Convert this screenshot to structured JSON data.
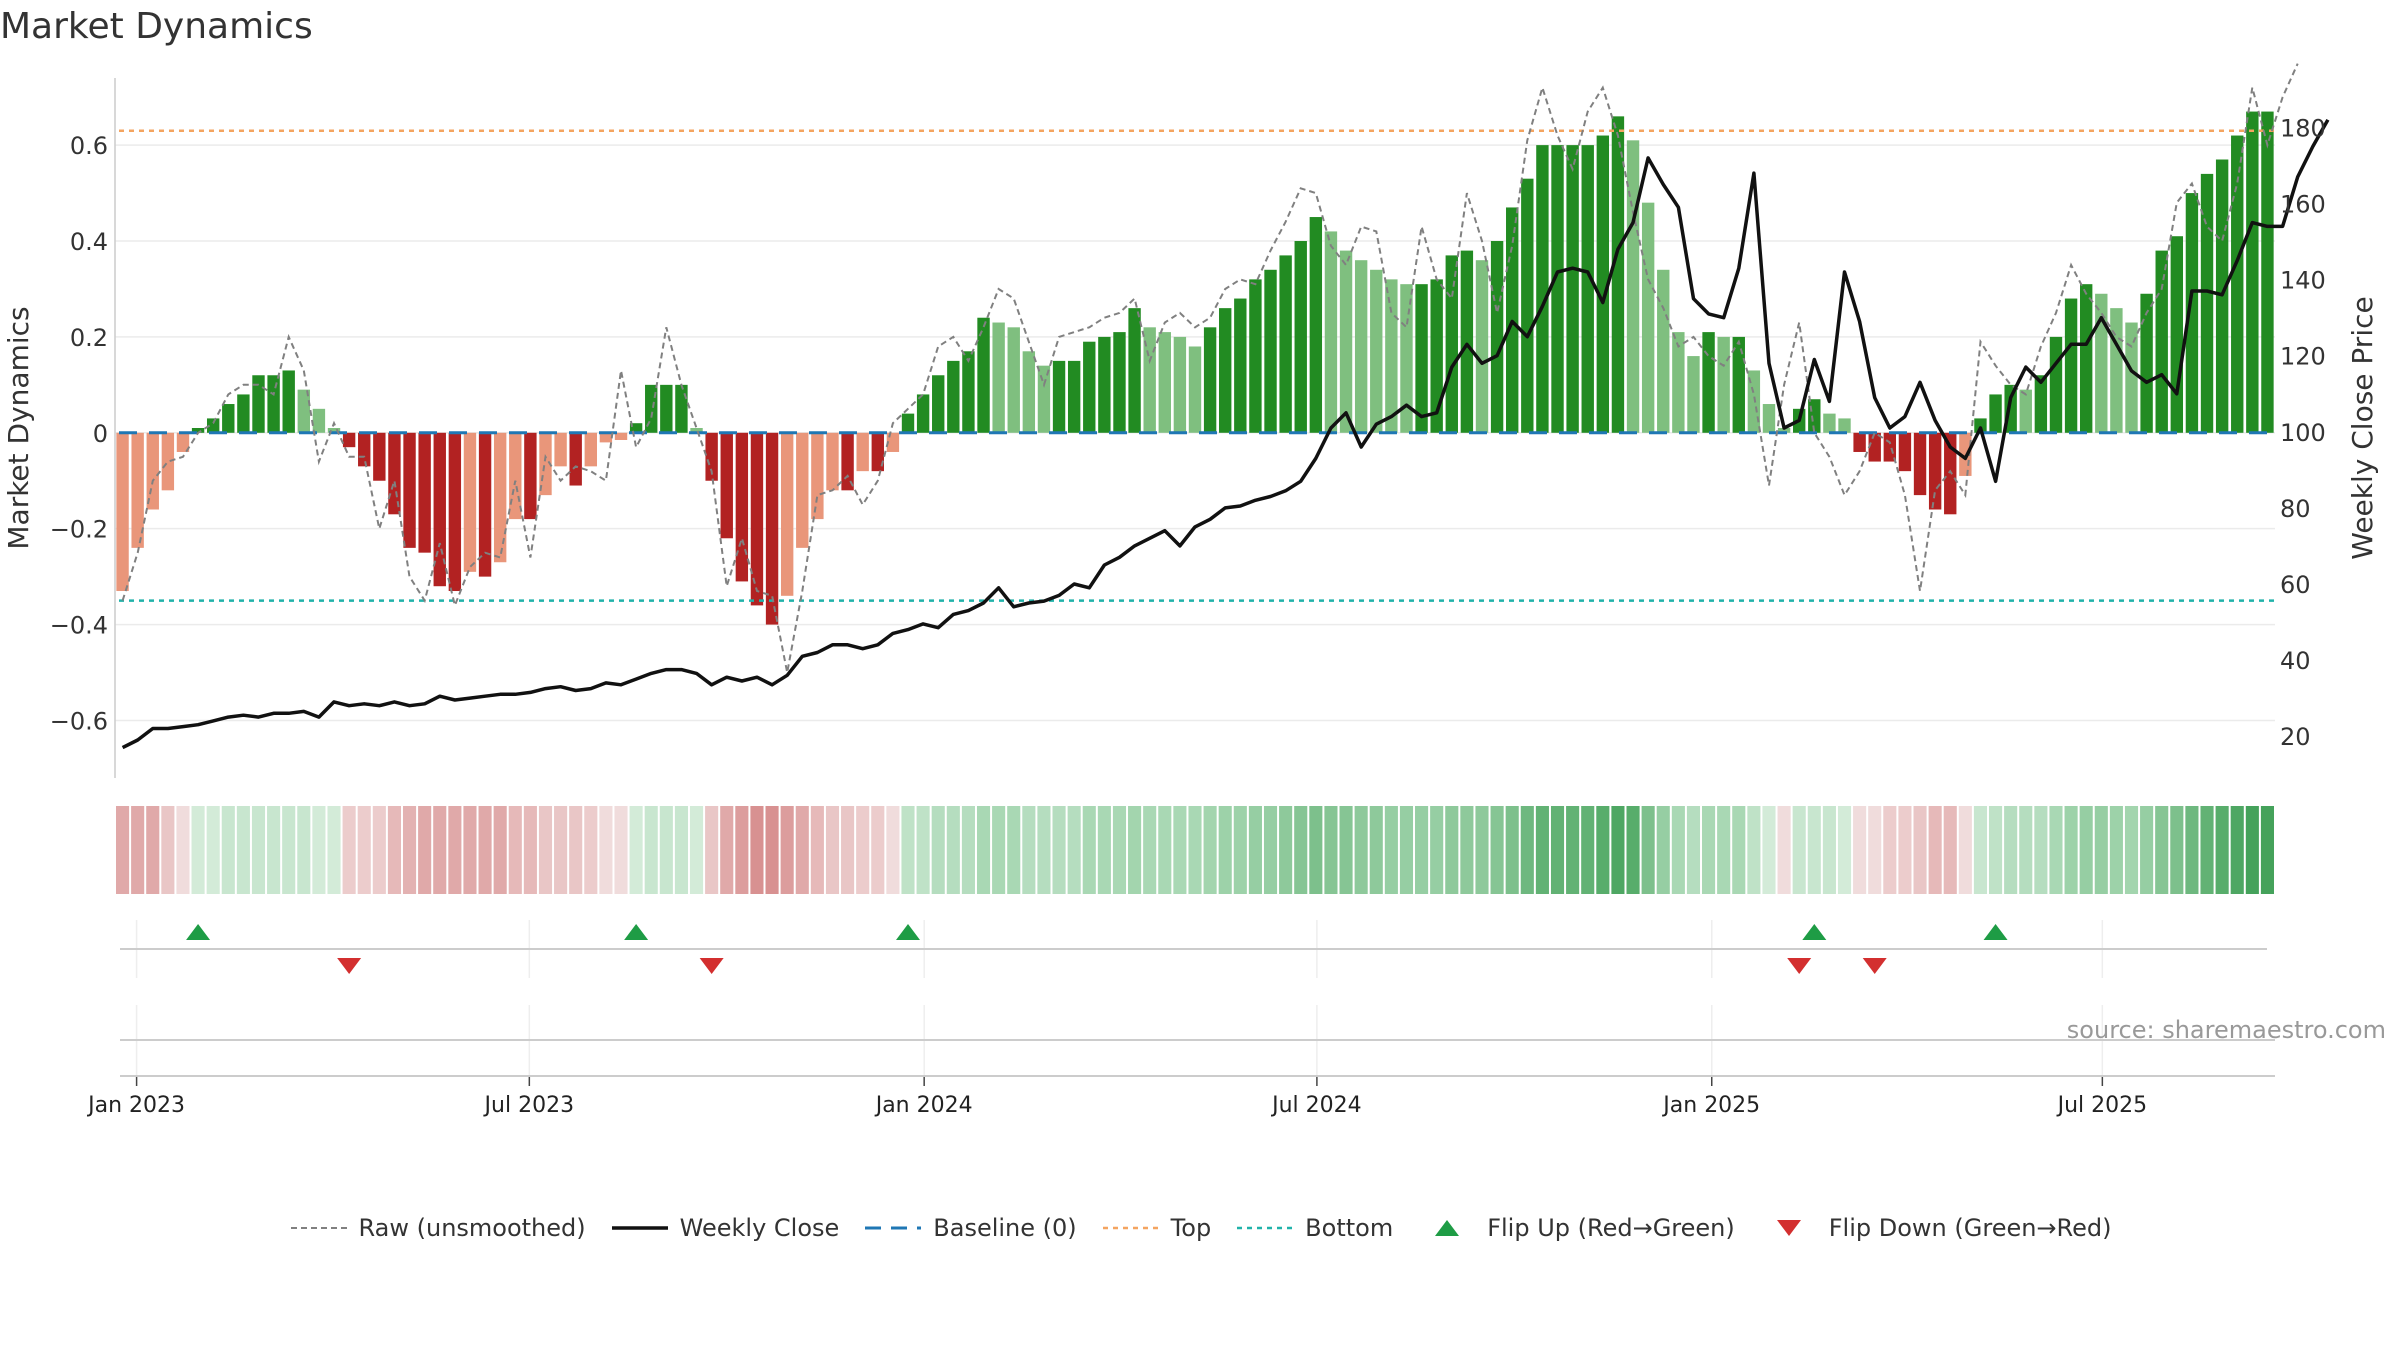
{
  "title": "Market Dynamics",
  "source": "source: sharemaestro.com",
  "chart_data": {
    "type": "bar",
    "left_axis": {
      "label": "Market Dynamics",
      "ylim": [
        -0.72,
        0.74
      ],
      "ticks": [
        "−0.6",
        "−0.4",
        "−0.2",
        "0",
        "0.2",
        "0.4",
        "0.6"
      ],
      "tick_values": [
        -0.6,
        -0.4,
        -0.2,
        0,
        0.2,
        0.4,
        0.6
      ]
    },
    "right_axis": {
      "label": "Weekly Close Price",
      "ylim": [
        9,
        193
      ],
      "ticks": [
        "20",
        "40",
        "60",
        "80",
        "100",
        "120",
        "140",
        "160",
        "180"
      ],
      "tick_values": [
        20,
        40,
        60,
        80,
        100,
        120,
        140,
        160,
        180
      ]
    },
    "x_ticks": [
      "Jan 2023",
      "Jul 2023",
      "Jan 2024",
      "Jul 2024",
      "Jan 2025",
      "Jul 2025"
    ],
    "x_tick_weeks": [
      1.43,
      27.43,
      53.57,
      79.57,
      105.71,
      131.57
    ],
    "top_line": 0.63,
    "bottom_line": -0.35,
    "baseline": 0,
    "bars": [
      -0.33,
      -0.24,
      -0.16,
      -0.12,
      -0.04,
      0.01,
      0.03,
      0.06,
      0.08,
      0.12,
      0.12,
      0.13,
      0.09,
      0.05,
      0.01,
      -0.03,
      -0.07,
      -0.1,
      -0.17,
      -0.24,
      -0.25,
      -0.32,
      -0.33,
      -0.29,
      -0.3,
      -0.27,
      -0.18,
      -0.18,
      -0.13,
      -0.07,
      -0.11,
      -0.07,
      -0.02,
      -0.015,
      0.02,
      0.1,
      0.1,
      0.1,
      0.01,
      -0.1,
      -0.22,
      -0.31,
      -0.36,
      -0.4,
      -0.34,
      -0.24,
      -0.18,
      -0.12,
      -0.12,
      -0.08,
      -0.08,
      -0.04,
      0.04,
      0.08,
      0.12,
      0.15,
      0.17,
      0.24,
      0.23,
      0.22,
      0.17,
      0.14,
      0.15,
      0.15,
      0.19,
      0.2,
      0.21,
      0.26,
      0.22,
      0.21,
      0.2,
      0.18,
      0.22,
      0.26,
      0.28,
      0.32,
      0.34,
      0.37,
      0.4,
      0.45,
      0.42,
      0.38,
      0.36,
      0.34,
      0.32,
      0.31,
      0.31,
      0.32,
      0.37,
      0.38,
      0.36,
      0.4,
      0.47,
      0.53,
      0.6,
      0.6,
      0.6,
      0.6,
      0.62,
      0.66,
      0.61,
      0.48,
      0.34,
      0.21,
      0.16,
      0.21,
      0.2,
      0.2,
      0.13,
      0.06,
      0.01,
      0.05,
      0.07,
      0.04,
      0.03,
      -0.04,
      -0.06,
      -0.06,
      -0.08,
      -0.13,
      -0.16,
      -0.17,
      -0.09,
      0.03,
      0.08,
      0.1,
      0.09,
      0.12,
      0.2,
      0.28,
      0.31,
      0.29,
      0.26,
      0.23,
      0.29,
      0.38,
      0.41,
      0.5,
      0.54,
      0.57,
      0.62,
      0.67,
      0.67
    ],
    "raw_series": [
      -0.35,
      -0.25,
      -0.1,
      -0.06,
      -0.05,
      0,
      0.02,
      0.08,
      0.1,
      0.1,
      0.08,
      0.2,
      0.13,
      -0.06,
      0.02,
      -0.05,
      -0.05,
      -0.2,
      -0.1,
      -0.3,
      -0.35,
      -0.23,
      -0.36,
      -0.28,
      -0.25,
      -0.26,
      -0.1,
      -0.26,
      -0.05,
      -0.1,
      -0.07,
      -0.08,
      -0.1,
      0.13,
      -0.03,
      0.03,
      0.22,
      0.1,
      0.01,
      -0.08,
      -0.32,
      -0.22,
      -0.33,
      -0.34,
      -0.5,
      -0.33,
      -0.13,
      -0.12,
      -0.09,
      -0.15,
      -0.1,
      0.02,
      0.05,
      0.08,
      0.18,
      0.2,
      0.15,
      0.22,
      0.3,
      0.28,
      0.19,
      0.1,
      0.2,
      0.21,
      0.22,
      0.24,
      0.25,
      0.28,
      0.15,
      0.23,
      0.25,
      0.22,
      0.24,
      0.3,
      0.32,
      0.31,
      0.38,
      0.44,
      0.51,
      0.5,
      0.39,
      0.35,
      0.43,
      0.42,
      0.25,
      0.22,
      0.43,
      0.32,
      0.28,
      0.5,
      0.4,
      0.25,
      0.39,
      0.61,
      0.72,
      0.62,
      0.55,
      0.67,
      0.72,
      0.62,
      0.46,
      0.32,
      0.26,
      0.18,
      0.2,
      0.16,
      0.14,
      0.19,
      0.08,
      -0.11,
      0.1,
      0.23,
      0.0,
      -0.05,
      -0.13,
      -0.08,
      0.0,
      -0.02,
      -0.13,
      -0.33,
      -0.12,
      -0.08,
      -0.13,
      0.19,
      0.14,
      0.1,
      0.08,
      0.18,
      0.25,
      0.35,
      0.29,
      0.25,
      0.2,
      0.18,
      0.25,
      0.3,
      0.48,
      0.52,
      0.43,
      0.4,
      0.52,
      0.72,
      0.6,
      0.7,
      0.77
    ],
    "weekly_close": [
      17,
      19,
      22,
      22,
      22.5,
      23,
      24,
      25,
      25.5,
      25,
      26,
      26,
      26.5,
      25,
      29,
      28,
      28.5,
      28,
      29,
      28,
      28.5,
      30.5,
      29.5,
      30,
      30.5,
      31,
      31,
      31.5,
      32.5,
      33,
      32,
      32.5,
      34,
      33.5,
      35,
      36.5,
      37.5,
      37.5,
      36.5,
      33.5,
      35.5,
      34.5,
      35.5,
      33.5,
      36,
      41,
      42,
      44,
      44,
      43,
      44,
      47,
      48,
      49.5,
      48.5,
      52,
      53,
      55,
      59,
      54,
      55,
      55.5,
      57,
      60,
      59,
      65,
      67,
      70,
      72,
      74,
      70,
      75,
      77,
      80,
      80.5,
      82,
      83,
      84.5,
      87,
      93,
      101,
      105,
      96,
      102,
      104,
      107,
      104,
      105,
      117,
      123,
      118,
      120,
      129,
      125,
      133,
      142,
      143,
      142,
      134,
      148,
      155,
      172,
      165,
      159,
      135,
      131,
      130,
      143,
      168,
      118,
      101,
      103,
      119,
      108,
      142,
      129,
      109,
      101,
      104,
      113,
      103,
      96,
      93,
      101,
      87,
      109,
      117,
      113,
      118,
      123,
      123,
      130,
      123,
      116,
      113,
      115,
      110,
      137,
      137,
      136,
      145,
      155,
      154,
      154,
      167,
      175,
      182
    ],
    "regime_colors": [
      "#e0a9a9",
      "#e0a9a9",
      "#e0a9a9",
      "#e9c6c6",
      "#f0dcdc",
      "#d3ebd8",
      "#d3ebd8",
      "#c8e6cf",
      "#c8e6cf",
      "#c8e6cf",
      "#c8e6cf",
      "#c8e6cf",
      "#c8e6cf",
      "#d3ebd8",
      "#d3ebd8",
      "#eccccc",
      "#eccccc",
      "#eccccc",
      "#e6b9b9",
      "#e3b2b2",
      "#e0a9a9",
      "#e0a9a9",
      "#e0a9a9",
      "#e0a9a9",
      "#e0a9a9",
      "#e0a9a9",
      "#e6b9b9",
      "#e6b9b9",
      "#e9c6c6",
      "#e9c6c6",
      "#e9c6c6",
      "#eccccc",
      "#f0dcdc",
      "#f0dcdc",
      "#d3ebd8",
      "#c8e6cf",
      "#c8e6cf",
      "#c8e6cf",
      "#d3ebd8",
      "#e9c6c6",
      "#e0a9a9",
      "#dc9d9d",
      "#d89191",
      "#d89191",
      "#dc9d9d",
      "#e0a9a9",
      "#e6b9b9",
      "#e9c6c6",
      "#e9c6c6",
      "#eccccc",
      "#eccccc",
      "#f0dcdc",
      "#bfe2c7",
      "#bfe2c7",
      "#b5ddbf",
      "#b5ddbf",
      "#b5ddbf",
      "#a9d8b4",
      "#a9d8b4",
      "#a9d8b4",
      "#b5ddbf",
      "#b5ddbf",
      "#b5ddbf",
      "#b5ddbf",
      "#a9d8b4",
      "#a9d8b4",
      "#a9d8b4",
      "#a3d5ae",
      "#a9d8b4",
      "#a9d8b4",
      "#a9d8b4",
      "#a9d8b4",
      "#a3d5ae",
      "#9dd2a9",
      "#9dd2a9",
      "#96cea3",
      "#96cea3",
      "#8ec99b",
      "#86c594",
      "#7dc08c",
      "#86c594",
      "#86c594",
      "#8ec99b",
      "#8ec99b",
      "#96cea3",
      "#96cea3",
      "#96cea3",
      "#96cea3",
      "#8ec99b",
      "#8ec99b",
      "#8ec99b",
      "#86c594",
      "#7dc08c",
      "#6eb87f",
      "#62b274",
      "#62b274",
      "#62b274",
      "#62b274",
      "#58ad6b",
      "#4ea763",
      "#58ad6b",
      "#7dc08c",
      "#96cea3",
      "#a9d8b4",
      "#b5ddbf",
      "#a9d8b4",
      "#a9d8b4",
      "#a9d8b4",
      "#bfe2c7",
      "#d3ebd8",
      "#f0dcdc",
      "#c8e6cf",
      "#c8e6cf",
      "#c8e6cf",
      "#d3ebd8",
      "#f0dcdc",
      "#f0dcdc",
      "#eccccc",
      "#eccccc",
      "#e9c6c6",
      "#e6b9b9",
      "#e6b9b9",
      "#f0dcdc",
      "#c8e6cf",
      "#bfe2c7",
      "#b5ddbf",
      "#b5ddbf",
      "#b5ddbf",
      "#a9d8b4",
      "#9dd2a9",
      "#96cea3",
      "#96cea3",
      "#9dd2a9",
      "#a3d5ae",
      "#96cea3",
      "#86c594",
      "#7dc08c",
      "#6eb87f",
      "#62b274",
      "#58ad6b",
      "#4ea763",
      "#45a25b",
      "#45a25b"
    ],
    "flip_up_weeks": [
      5,
      34,
      52,
      112,
      124
    ],
    "flip_down_weeks": [
      15,
      39,
      111,
      116
    ],
    "colors": {
      "strong_green": "#228b22",
      "light_green": "#7fbf7f",
      "strong_red": "#b22222",
      "light_red": "#e9967a",
      "raw_line": "#808080",
      "weekly_close": "#111111",
      "baseline": "#1f77b4",
      "top": "#f4a460",
      "bottom": "#20b2aa",
      "flip_up": "#1e9c45",
      "flip_down": "#d32f2f",
      "grid": "#ebebeb"
    },
    "legend": [
      {
        "label": "Raw (unsmoothed)",
        "style": "dashed-grey"
      },
      {
        "label": "Weekly Close",
        "style": "solid-black"
      },
      {
        "label": "Baseline (0)",
        "style": "dashed-blue"
      },
      {
        "label": "Top",
        "style": "dotted-orange"
      },
      {
        "label": "Bottom",
        "style": "dotted-teal"
      },
      {
        "label": "Flip Up (Red→Green)",
        "style": "triangle-up-green"
      },
      {
        "label": "Flip Down (Green→Red)",
        "style": "triangle-down-red"
      }
    ]
  }
}
